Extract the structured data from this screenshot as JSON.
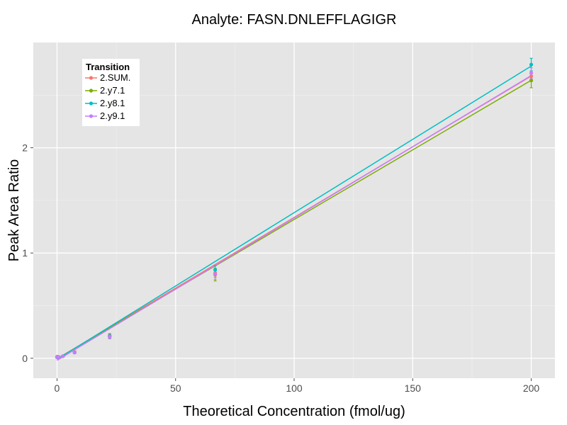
{
  "chart_data": {
    "type": "line",
    "title": "Analyte: FASN.DNLEFFLAGIGR",
    "xlabel": "Theoretical Concentration (fmol/ug)",
    "ylabel": "Peak Area Ratio",
    "xlim": [
      -10,
      210
    ],
    "ylim": [
      -0.19,
      3.0
    ],
    "x_ticks": [
      0,
      50,
      100,
      150,
      200
    ],
    "y_ticks": [
      0,
      1,
      2
    ],
    "legend": {
      "title": "Transition",
      "position": "top-left"
    },
    "x": [
      0,
      0.25,
      0.74,
      2.5,
      7.4,
      22.2,
      66.7,
      200
    ],
    "series": [
      {
        "name": "2.SUM.",
        "color": "#F8766D",
        "points": [
          [
            0,
            0.015
          ],
          [
            0.25,
            0.015
          ],
          [
            0.74,
            0.012
          ],
          [
            2.5,
            0.02
          ],
          [
            7.4,
            0.06
          ],
          [
            22.2,
            0.215
          ],
          [
            66.7,
            0.81
          ],
          [
            200,
            2.68
          ]
        ],
        "errors": [
          0.005,
          0.005,
          0.005,
          0.005,
          0.01,
          0.02,
          0.04,
          0.05
        ],
        "fit": {
          "slope": 0.01343,
          "intercept": -0.005
        }
      },
      {
        "name": "2.y7.1",
        "color": "#7CAE00",
        "points": [
          [
            0,
            0.01
          ],
          [
            0.25,
            0.01
          ],
          [
            0.74,
            0.01
          ],
          [
            2.5,
            0.02
          ],
          [
            7.4,
            0.055
          ],
          [
            22.2,
            0.205
          ],
          [
            66.7,
            0.795
          ],
          [
            200,
            2.64
          ]
        ],
        "errors": [
          0.005,
          0.005,
          0.005,
          0.005,
          0.01,
          0.02,
          0.06,
          0.07
        ],
        "fit": {
          "slope": 0.01323,
          "intercept": -0.005
        }
      },
      {
        "name": "2.y8.1",
        "color": "#00BFC4",
        "points": [
          [
            0,
            0.01
          ],
          [
            0.25,
            0.01
          ],
          [
            0.74,
            0.01
          ],
          [
            2.5,
            0.02
          ],
          [
            7.4,
            0.055
          ],
          [
            22.2,
            0.21
          ],
          [
            66.7,
            0.84
          ],
          [
            200,
            2.79
          ]
        ],
        "errors": [
          0.005,
          0.005,
          0.005,
          0.005,
          0.01,
          0.02,
          0.04,
          0.06
        ],
        "fit": {
          "slope": 0.01393,
          "intercept": -0.01
        }
      },
      {
        "name": "2.y9.1",
        "color": "#C77CFF",
        "points": [
          [
            0,
            0.01
          ],
          [
            0.25,
            0.01
          ],
          [
            0.74,
            0.01
          ],
          [
            2.5,
            0.02
          ],
          [
            7.4,
            0.055
          ],
          [
            22.2,
            0.205
          ],
          [
            66.7,
            0.8
          ],
          [
            200,
            2.71
          ]
        ],
        "errors": [
          0.005,
          0.005,
          0.005,
          0.005,
          0.01,
          0.02,
          0.05,
          0.05
        ],
        "fit": {
          "slope": 0.01353,
          "intercept": -0.02
        }
      }
    ]
  }
}
